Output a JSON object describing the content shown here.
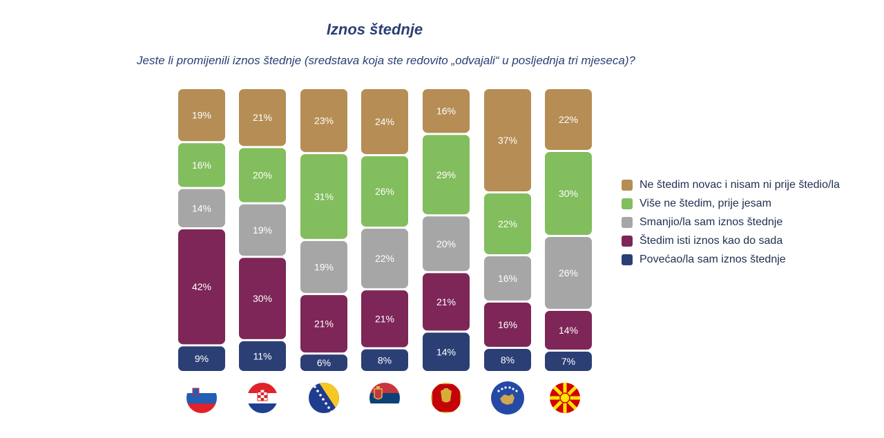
{
  "colors": {
    "title": "#2a3f73",
    "series": [
      "#2b3f75",
      "#7d2657",
      "#a6a6a6",
      "#82bd5e",
      "#b58d55"
    ]
  },
  "chart_data": {
    "type": "bar",
    "stacked": true,
    "normalized": true,
    "title": "Iznos štednje",
    "subtitle": "Jeste li promijenili iznos štednje (sredstava koja ste redovito „odvajali“ u posljednja tri mjeseca)?",
    "categories": [
      "Slovenia",
      "Croatia",
      "Bosnia and Herzegovina",
      "Serbia",
      "Montenegro",
      "Kosovo",
      "North Macedonia"
    ],
    "category_display": "flag icons",
    "legend_placement": "right",
    "series": [
      {
        "name": "Povećao/la sam iznos štednje",
        "values": [
          9,
          11,
          6,
          8,
          14,
          8,
          7
        ],
        "labels": [
          "9%",
          "11%",
          "6%",
          "8%",
          "14%",
          "8%",
          "7%"
        ]
      },
      {
        "name": "Štedim isti iznos kao do sada",
        "values": [
          42,
          30,
          21,
          21,
          21,
          16,
          14
        ],
        "labels": [
          "42%",
          "30%",
          "21%",
          "21%",
          "21%",
          "16%",
          "14%"
        ]
      },
      {
        "name": "Smanjio/la sam iznos štednje",
        "values": [
          14,
          19,
          19,
          22,
          20,
          16,
          26
        ],
        "labels": [
          "14%",
          "19%",
          "19%",
          "22%",
          "20%",
          "16%",
          "26%"
        ]
      },
      {
        "name": "Više ne štedim, prije jesam",
        "values": [
          16,
          20,
          31,
          26,
          29,
          22,
          30
        ],
        "labels": [
          "16%",
          "20%",
          "31%",
          "26%",
          "29%",
          "22%",
          "30%"
        ]
      },
      {
        "name": "Ne štedim novac i nisam ni prije štedio/la",
        "values": [
          19,
          21,
          23,
          24,
          16,
          37,
          22
        ],
        "labels": [
          "19%",
          "21%",
          "23%",
          "24%",
          "16%",
          "37%",
          "22%"
        ]
      }
    ],
    "legend_order": [
      4,
      3,
      2,
      1,
      0
    ],
    "flags": [
      "slovenia-flag-icon",
      "croatia-flag-icon",
      "bosnia-flag-icon",
      "serbia-flag-icon",
      "montenegro-flag-icon",
      "kosovo-flag-icon",
      "north-macedonia-flag-icon"
    ]
  }
}
